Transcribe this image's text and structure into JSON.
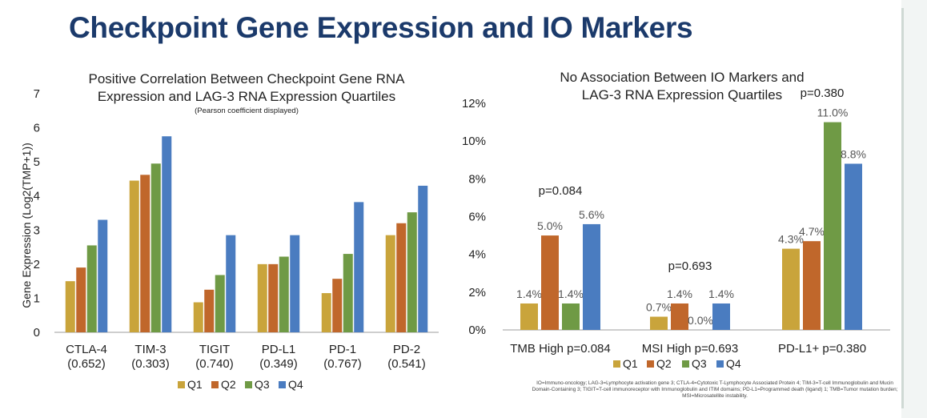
{
  "slide": {
    "title": "Checkpoint Gene Expression and IO Markers",
    "footnote": "IO=Immuno-oncology; LAG-3=Lymphocyte activation gene 3; CTLA-4=Cytotoxic T-Lymphocyte Associated Protein 4; TIM-3=T-cell Immunoglobulin and Mucin Domain-Containing 3; TIGIT=T-cell immunoreceptor with Immunoglobulin and ITIM domains; PD-L1=Programmed death (ligand) 1; TMB=Tumor mutation burden; MSI=Microsatellite instability."
  },
  "colors": {
    "Q1": "#c9a43b",
    "Q2": "#c0672b",
    "Q3": "#6f9a45",
    "Q4": "#4a7cc0"
  },
  "chart_data": [
    {
      "type": "bar",
      "title": "Positive Correlation Between Checkpoint Gene RNA Expression and LAG-3 RNA Expression Quartiles",
      "title_lines": [
        "Positive Correlation Between Checkpoint Gene RNA",
        "Expression and LAG-3 RNA Expression Quartiles"
      ],
      "subtitle": "(Pearson coefficient displayed)",
      "ylabel": "Gene Expression (Log2(TMP+1))",
      "xlabel": "",
      "ylim": [
        0,
        7
      ],
      "yticks": [
        "0",
        "1",
        "2",
        "3",
        "4",
        "5",
        "6",
        "7"
      ],
      "categories": [
        "CTLA-4",
        "TIM-3",
        "TIGIT",
        "PD-L1",
        "PD-1",
        "PD-2"
      ],
      "category_notes": [
        "(0.652)",
        "(0.303)",
        "(0.740)",
        "(0.349)",
        "(0.767)",
        "(0.541)"
      ],
      "series": [
        {
          "name": "Q1",
          "values": [
            1.5,
            4.45,
            0.88,
            2.0,
            1.15,
            2.85
          ]
        },
        {
          "name": "Q2",
          "values": [
            1.9,
            4.62,
            1.25,
            2.0,
            1.57,
            3.2
          ]
        },
        {
          "name": "Q3",
          "values": [
            2.55,
            4.95,
            1.68,
            2.22,
            2.3,
            3.52
          ]
        },
        {
          "name": "Q4",
          "values": [
            3.3,
            5.75,
            2.85,
            2.85,
            3.82,
            4.3
          ]
        }
      ],
      "legend": [
        "Q1",
        "Q2",
        "Q3",
        "Q4"
      ],
      "legend_position": "bottom",
      "grid": false
    },
    {
      "type": "bar",
      "title": "No Association Between IO Markers and LAG-3 RNA Expression Quartiles",
      "title_lines": [
        "No Association Between IO Markers and",
        "LAG-3 RNA Expression Quartiles"
      ],
      "ylabel": "",
      "xlabel": "",
      "ylim": [
        0,
        12
      ],
      "yticks": [
        "0%",
        "2%",
        "4%",
        "6%",
        "8%",
        "10%",
        "12%"
      ],
      "categories": [
        "TMB High p=0.084",
        "MSI High p=0.693",
        "PD-L1+ p=0.380"
      ],
      "annotations": [
        "p=0.084",
        "p=0.693",
        "p=0.380"
      ],
      "series": [
        {
          "name": "Q1",
          "values": [
            1.4,
            0.7,
            4.3
          ],
          "labels": [
            "1.4%",
            "0.7%",
            "4.3%"
          ]
        },
        {
          "name": "Q2",
          "values": [
            5.0,
            1.4,
            4.7
          ],
          "labels": [
            "5.0%",
            "1.4%",
            "4.7%"
          ]
        },
        {
          "name": "Q3",
          "values": [
            1.4,
            0.0,
            11.0
          ],
          "labels": [
            "1.4%",
            "0.0%",
            "11.0%"
          ]
        },
        {
          "name": "Q4",
          "values": [
            5.6,
            1.4,
            8.8
          ],
          "labels": [
            "5.6%",
            "1.4%",
            "8.8%"
          ]
        }
      ],
      "legend": [
        "Q1",
        "Q2",
        "Q3",
        "Q4"
      ],
      "legend_position": "bottom",
      "grid": false
    }
  ]
}
